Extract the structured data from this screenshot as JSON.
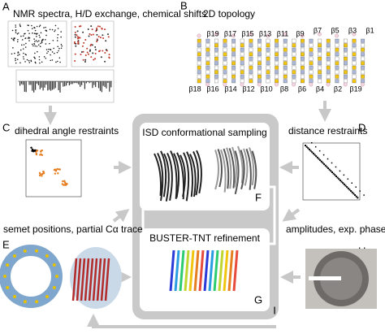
{
  "panels": {
    "A": {
      "letter": "A",
      "title": "NMR spectra, H/D exchange, chemical shifts"
    },
    "B": {
      "letter": "B",
      "title": "2D topology"
    },
    "C": {
      "letter": "C",
      "title": "dihedral angle restraints"
    },
    "D": {
      "letter": "D",
      "title": "distance restraints"
    },
    "E": {
      "letter": "E",
      "title": "semet positions, partial Cα trace"
    },
    "H": {
      "letter": "H",
      "title": "amplitudes, exp. phases"
    }
  },
  "topology": {
    "top_labels": [
      "β19",
      "β17",
      "β15",
      "β13",
      "β11",
      "β9",
      "β7",
      "β5",
      "β3",
      "β1"
    ],
    "bottom_labels": [
      "β18",
      "β16",
      "β14",
      "β12",
      "β10",
      "β8",
      "β6",
      "β4",
      "β2",
      "β19"
    ]
  },
  "center": {
    "sampling": {
      "title": "ISD conformational sampling",
      "letter": "F"
    },
    "refinement": {
      "title": "BUSTER-TNT refinement",
      "letter": "G"
    },
    "letter": "I"
  }
}
